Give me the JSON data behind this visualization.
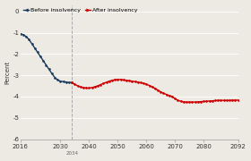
{
  "title": "",
  "ylabel": "Percent",
  "xlim": [
    2016,
    2092
  ],
  "ylim": [
    -6,
    0.3
  ],
  "yticks": [
    0,
    -1,
    -2,
    -3,
    -4,
    -5,
    -6
  ],
  "ytick_labels": [
    "0",
    "-1",
    "-2",
    "-3",
    "-4",
    "-5",
    "-6"
  ],
  "xticks": [
    2016,
    2030,
    2040,
    2050,
    2060,
    2070,
    2080,
    2092
  ],
  "xtick_labels": [
    "2016",
    "2030",
    "2040",
    "2050",
    "2060",
    "2070",
    "2080",
    "2092"
  ],
  "vline_x": 2034,
  "vline_label": "2034",
  "before_color": "#1a3a5c",
  "after_color": "#cc0000",
  "bg_color": "#ede9e3",
  "grid_color": "#ffffff",
  "legend_before": "Before insolvency",
  "legend_after": "After insolvency",
  "before_x": [
    2016,
    2017,
    2018,
    2019,
    2020,
    2021,
    2022,
    2023,
    2024,
    2025,
    2026,
    2027,
    2028,
    2029,
    2030,
    2031,
    2032,
    2033,
    2034
  ],
  "before_y": [
    -1.05,
    -1.1,
    -1.18,
    -1.32,
    -1.52,
    -1.72,
    -1.92,
    -2.12,
    -2.32,
    -2.52,
    -2.72,
    -2.92,
    -3.1,
    -3.22,
    -3.28,
    -3.3,
    -3.32,
    -3.34,
    -3.35
  ],
  "after_x": [
    2034,
    2035,
    2036,
    2037,
    2038,
    2039,
    2040,
    2041,
    2042,
    2043,
    2044,
    2045,
    2046,
    2047,
    2048,
    2049,
    2050,
    2051,
    2052,
    2053,
    2054,
    2055,
    2056,
    2057,
    2058,
    2059,
    2060,
    2061,
    2062,
    2063,
    2064,
    2065,
    2066,
    2067,
    2068,
    2069,
    2070,
    2071,
    2072,
    2073,
    2074,
    2075,
    2076,
    2077,
    2078,
    2079,
    2080,
    2081,
    2082,
    2083,
    2084,
    2085,
    2086,
    2087,
    2088,
    2089,
    2090,
    2091,
    2092
  ],
  "after_y": [
    -3.35,
    -3.42,
    -3.5,
    -3.55,
    -3.58,
    -3.6,
    -3.6,
    -3.58,
    -3.54,
    -3.5,
    -3.44,
    -3.38,
    -3.33,
    -3.28,
    -3.24,
    -3.21,
    -3.2,
    -3.2,
    -3.22,
    -3.24,
    -3.26,
    -3.28,
    -3.3,
    -3.32,
    -3.35,
    -3.38,
    -3.42,
    -3.48,
    -3.55,
    -3.62,
    -3.7,
    -3.78,
    -3.85,
    -3.9,
    -3.96,
    -4.0,
    -4.1,
    -4.18,
    -4.22,
    -4.25,
    -4.26,
    -4.26,
    -4.26,
    -4.26,
    -4.25,
    -4.24,
    -4.23,
    -4.22,
    -4.21,
    -4.2,
    -4.19,
    -4.18,
    -4.18,
    -4.18,
    -4.18,
    -4.18,
    -4.17,
    -4.17,
    -4.17
  ]
}
